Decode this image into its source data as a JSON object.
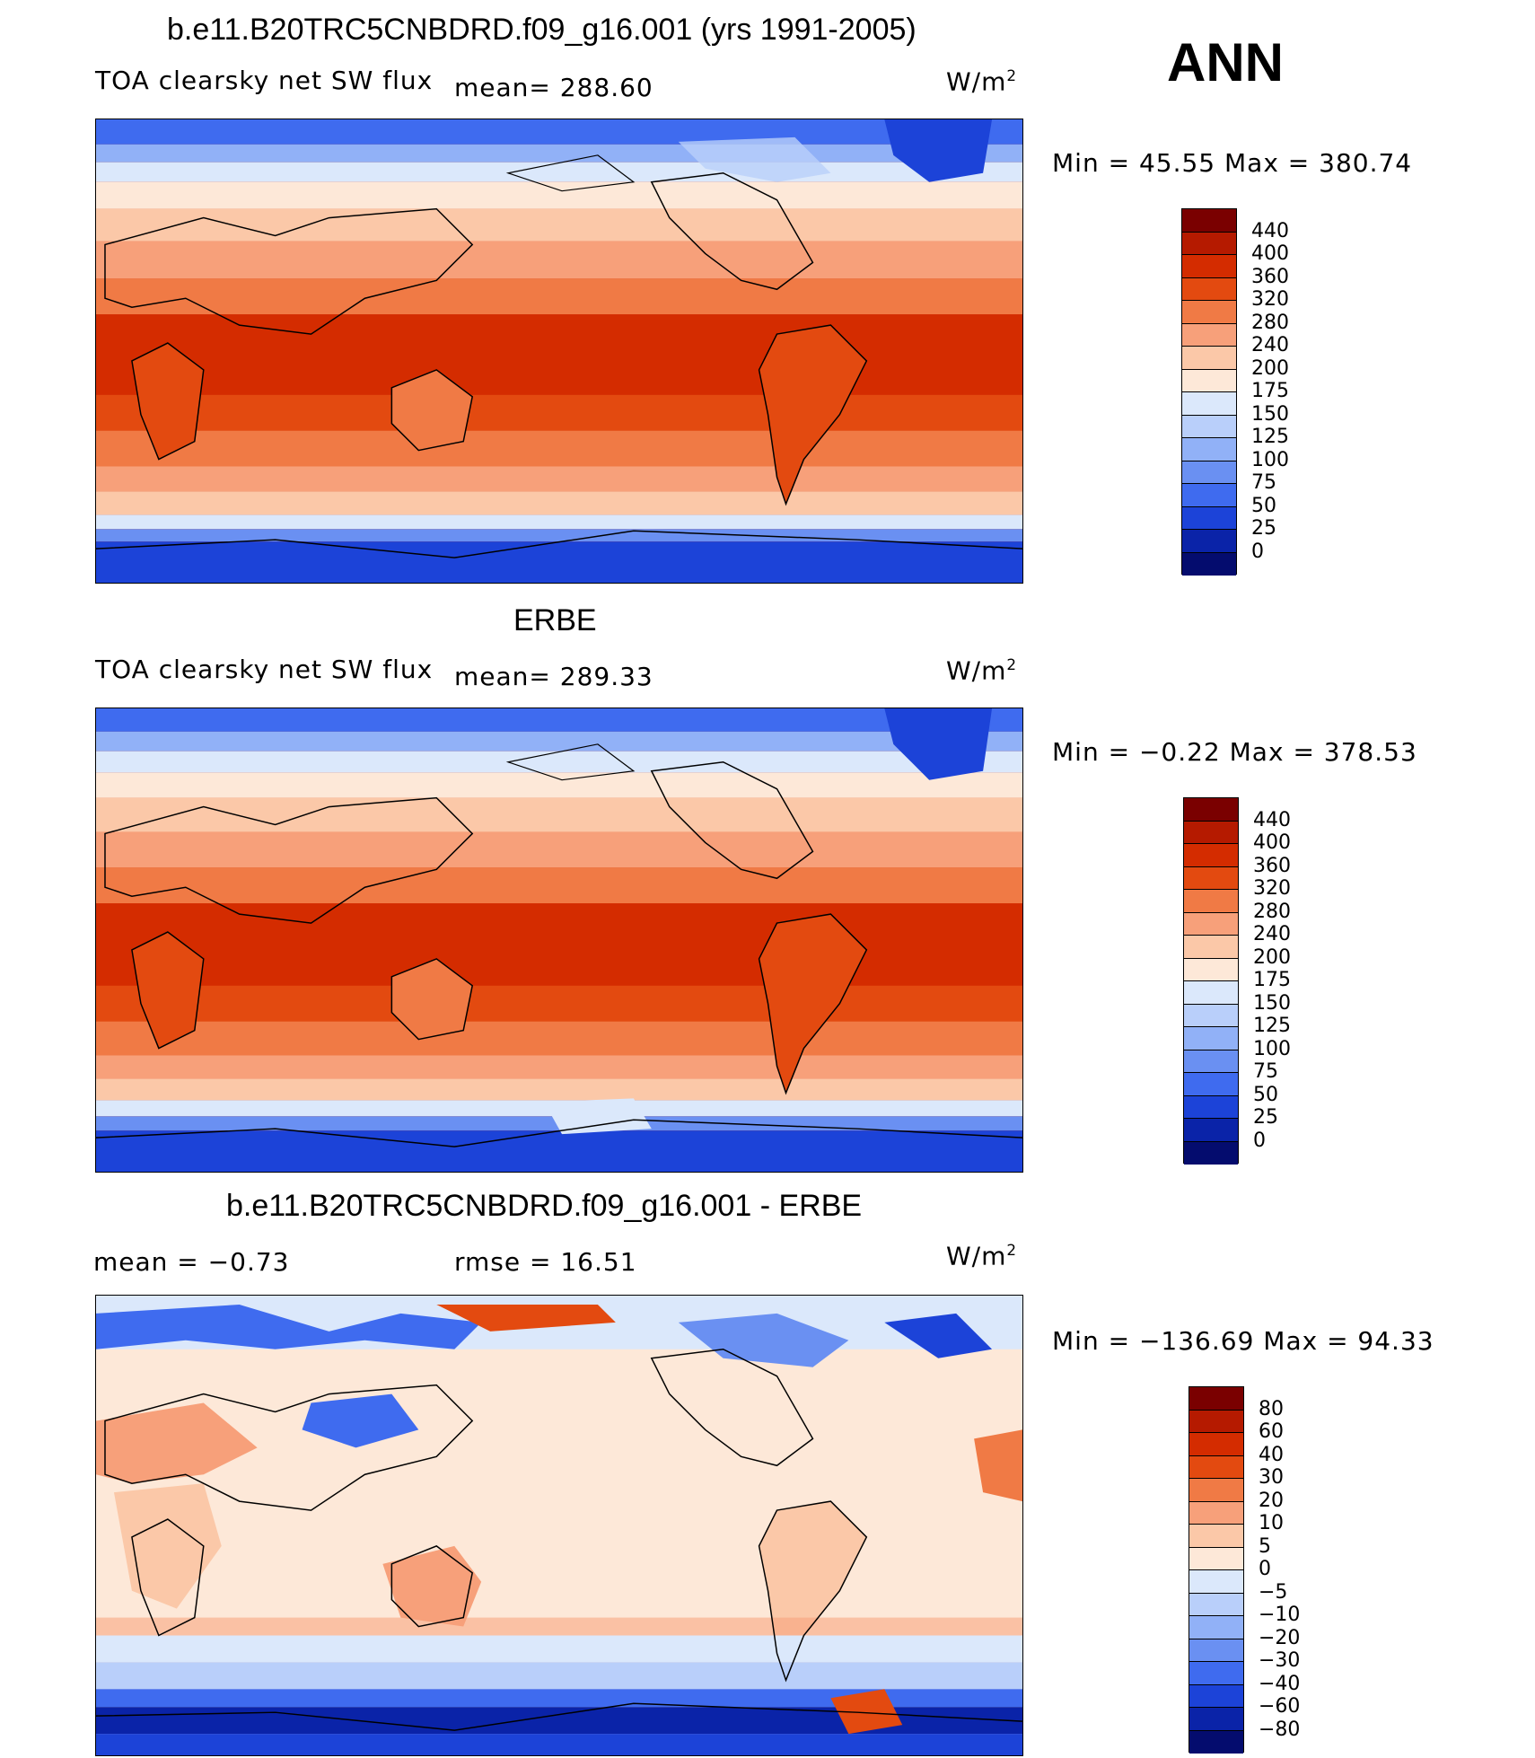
{
  "annotation": "ANN",
  "panels": [
    {
      "title": "b.e11.B20TRC5CNBDRD.f09_g16.001 (yrs 1991-2005)",
      "left_label": "TOA clearsky net SW flux",
      "mean_text": "mean= 288.60",
      "units": "W/m",
      "units_exp": "2",
      "minmax": "Min =   45.55 Max =  380.74",
      "colorbar": {
        "labels": [
          "440",
          "400",
          "360",
          "320",
          "280",
          "240",
          "200",
          "175",
          "150",
          "125",
          "100",
          "75",
          "50",
          "25",
          "0"
        ],
        "colors": [
          "#7a0000",
          "#b51a00",
          "#d42c00",
          "#e34a10",
          "#f07a45",
          "#f7a07a",
          "#fbc8a8",
          "#fde8d8",
          "#dbe8fb",
          "#b9cffa",
          "#91b1f7",
          "#6a90f2",
          "#3f6bef",
          "#1c43d8",
          "#0a23a8",
          "#040c6e"
        ]
      }
    },
    {
      "title": "ERBE",
      "left_label": "TOA clearsky net SW flux",
      "mean_text": "mean= 289.33",
      "units": "W/m",
      "units_exp": "2",
      "minmax": "Min =   −0.22 Max =  378.53",
      "colorbar": {
        "labels": [
          "440",
          "400",
          "360",
          "320",
          "280",
          "240",
          "200",
          "175",
          "150",
          "125",
          "100",
          "75",
          "50",
          "25",
          "0"
        ],
        "colors": [
          "#7a0000",
          "#b51a00",
          "#d42c00",
          "#e34a10",
          "#f07a45",
          "#f7a07a",
          "#fbc8a8",
          "#fde8d8",
          "#dbe8fb",
          "#b9cffa",
          "#91b1f7",
          "#6a90f2",
          "#3f6bef",
          "#1c43d8",
          "#0a23a8",
          "#040c6e"
        ]
      }
    },
    {
      "title": "b.e11.B20TRC5CNBDRD.f09_g16.001 - ERBE",
      "left_label": "mean =   −0.73",
      "mean_text": "rmse =   16.51",
      "units": "W/m",
      "units_exp": "2",
      "minmax": "Min = −136.69 Max =   94.33",
      "colorbar": {
        "labels": [
          "80",
          "60",
          "40",
          "30",
          "20",
          "10",
          "5",
          "0",
          "−5",
          "−10",
          "−20",
          "−30",
          "−40",
          "−60",
          "−80"
        ],
        "colors": [
          "#7a0000",
          "#b51a00",
          "#d42c00",
          "#e34a10",
          "#f07a45",
          "#f7a07a",
          "#fbc8a8",
          "#fde8d8",
          "#dbe8fb",
          "#b9cffa",
          "#91b1f7",
          "#6a90f2",
          "#3f6bef",
          "#1c43d8",
          "#0a23a8",
          "#040c6e"
        ]
      }
    }
  ],
  "map_palette": {
    "deep_blue": "#1c43d8",
    "mid_blue": "#3f6bef",
    "light_blue": "#b9cffa",
    "pale_blue": "#dbe8fb",
    "cream": "#fde8d8",
    "peach": "#fbc8a8",
    "salmon": "#f7a07a",
    "orange": "#f07a45",
    "red_orange": "#e34a10",
    "deep_orange": "#d42c00",
    "land_line": "#000000"
  }
}
